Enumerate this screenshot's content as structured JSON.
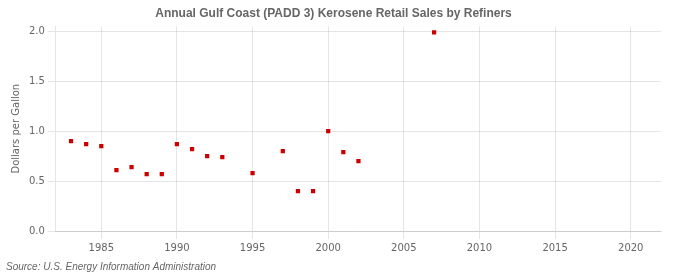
{
  "chart_data": {
    "type": "scatter",
    "title": "Annual Gulf Coast (PADD 3) Kerosene Retail Sales by Refiners",
    "ylabel": "Dollars per Gallon",
    "source": "Source: U.S. Energy Information Administration",
    "x": [
      1983,
      1984,
      1985,
      1986,
      1987,
      1988,
      1989,
      1990,
      1991,
      1992,
      1993,
      1995,
      1997,
      1998,
      1999,
      2000,
      2001,
      2002,
      2007
    ],
    "values": [
      0.9,
      0.87,
      0.85,
      0.61,
      0.64,
      0.57,
      0.57,
      0.87,
      0.82,
      0.75,
      0.74,
      0.58,
      0.8,
      0.4,
      0.4,
      1.0,
      0.79,
      0.7,
      1.99
    ],
    "color": "#cc0000",
    "marker": "square",
    "xlim": [
      1982,
      2022
    ],
    "ylim": [
      0.0,
      2.05
    ],
    "xticks": [
      1985,
      1990,
      1995,
      2000,
      2005,
      2010,
      2015,
      2020
    ],
    "yticks": [
      {
        "value": 0,
        "label": "0.0"
      },
      0.5,
      {
        "value": 1,
        "label": "1.0"
      },
      1.5,
      {
        "value": 2,
        "label": "2.0"
      }
    ],
    "grid": true
  }
}
